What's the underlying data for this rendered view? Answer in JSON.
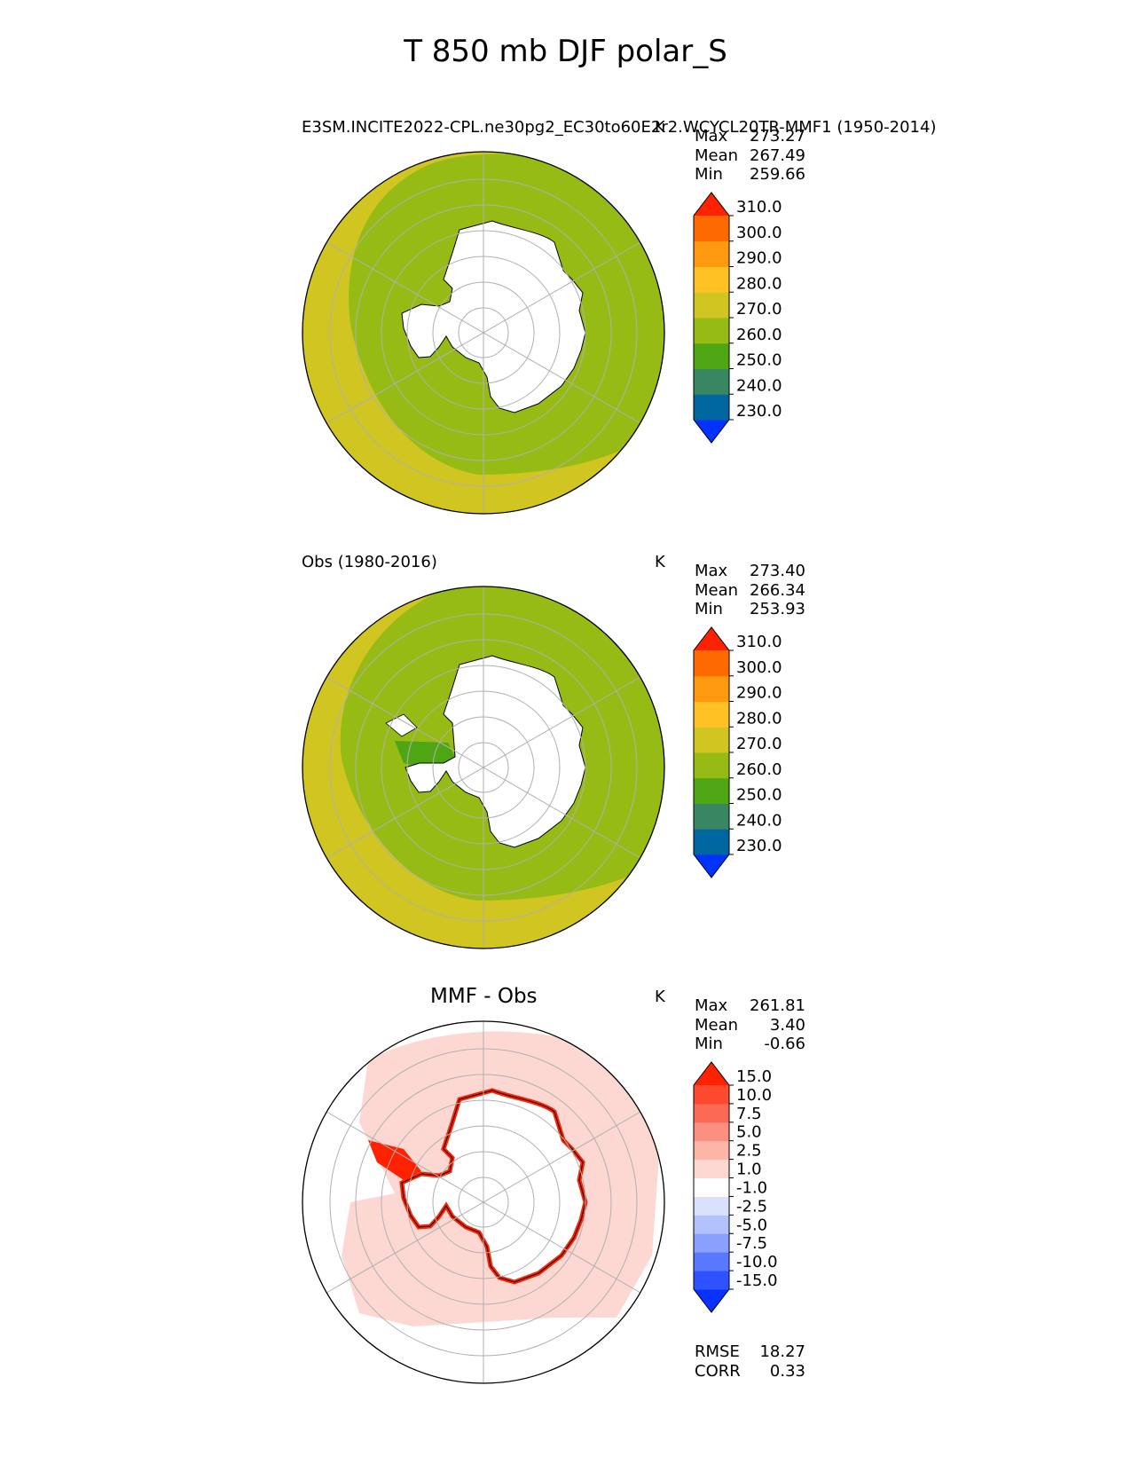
{
  "figure": {
    "title": "T 850 mb DJF polar_S"
  },
  "colors": {
    "land": "#ffffff",
    "coast": "#000000",
    "grid": "#b0b0b0",
    "abs_270_280": "#d0c521",
    "abs_260_270": "#96bb14",
    "abs_250_260": "#4ea614",
    "diff_1_2p5": "#fdd8d3",
    "diff_gt_15": "#ff2200"
  },
  "panels": [
    {
      "id": "model",
      "title_left": "E3SM.INCITE2022-CPL.ne30pg2_EC30to60E2r2.WCYCL20TR-MMF1 (1950-2014)",
      "title_center": "",
      "units": "K",
      "stats": [
        {
          "label": "Max",
          "value": "273.27"
        },
        {
          "label": "Mean",
          "value": "267.49"
        },
        {
          "label": "Min",
          "value": "259.66"
        }
      ],
      "colorbar": "abs"
    },
    {
      "id": "obs",
      "title_left": "Obs (1980-2016)",
      "title_center": "",
      "units": "K",
      "stats": [
        {
          "label": "Max",
          "value": "273.40"
        },
        {
          "label": "Mean",
          "value": "266.34"
        },
        {
          "label": "Min",
          "value": "253.93"
        }
      ],
      "colorbar": "abs"
    },
    {
      "id": "diff",
      "title_left": "",
      "title_center": "MMF - Obs",
      "units": "K",
      "stats": [
        {
          "label": "Max",
          "value": "261.81"
        },
        {
          "label": "Mean",
          "value": "3.40"
        },
        {
          "label": "Min",
          "value": "-0.66"
        }
      ],
      "extra_stats": [
        {
          "label": "RMSE",
          "value": "18.27"
        },
        {
          "label": "CORR",
          "value": "0.33"
        }
      ],
      "colorbar": "diff"
    }
  ],
  "colorbars": {
    "abs": {
      "colors": [
        "#0033ff",
        "#0066a0",
        "#398762",
        "#4ea614",
        "#96bb14",
        "#d0c521",
        "#ffc124",
        "#ff9a10",
        "#ff6a00",
        "#ff2200"
      ],
      "ticks": [
        "230.0",
        "240.0",
        "250.0",
        "260.0",
        "270.0",
        "280.0",
        "290.0",
        "300.0",
        "310.0"
      ]
    },
    "diff": {
      "colors": [
        "#0a32ff",
        "#2e52ff",
        "#5a78ff",
        "#8aa0ff",
        "#b3c2ff",
        "#dae1ff",
        "#ffffff",
        "#fdd8d3",
        "#fdb5a8",
        "#fc9080",
        "#fc6a55",
        "#fd4a2f",
        "#ff2200"
      ],
      "ticks": [
        "-15.0",
        "-10.0",
        "-7.5",
        "-5.0",
        "-2.5",
        "-1.0",
        "1.0",
        "2.5",
        "5.0",
        "7.5",
        "10.0",
        "15.0"
      ]
    }
  },
  "chart_data": [
    {
      "type": "heatmap",
      "projection": "south polar stereographic",
      "variable": "T 850 mb",
      "season": "DJF",
      "region": "polar_S",
      "panel": "model",
      "units": "K",
      "stats": {
        "max": 273.27,
        "mean": 267.49,
        "min": 259.66
      },
      "dominant_bins": [
        "260.0-270.0",
        "270.0-280.0"
      ],
      "colorbar_ticks": [
        230,
        240,
        250,
        260,
        270,
        280,
        290,
        300,
        310
      ]
    },
    {
      "type": "heatmap",
      "projection": "south polar stereographic",
      "panel": "obs",
      "units": "K",
      "stats": {
        "max": 273.4,
        "mean": 266.34,
        "min": 253.93
      },
      "dominant_bins": [
        "250.0-260.0",
        "260.0-270.0",
        "270.0-280.0"
      ],
      "colorbar_ticks": [
        230,
        240,
        250,
        260,
        270,
        280,
        290,
        300,
        310
      ]
    },
    {
      "type": "heatmap",
      "projection": "south polar stereographic",
      "panel": "diff",
      "units": "K",
      "stats": {
        "max": 261.81,
        "mean": 3.4,
        "min": -0.66,
        "rmse": 18.27,
        "corr": 0.33
      },
      "dominant_bins": [
        "-1.0-1.0",
        "1.0-2.5",
        ">15.0"
      ],
      "colorbar_ticks": [
        -15,
        -10,
        -7.5,
        -5,
        -2.5,
        -1,
        1,
        2.5,
        5,
        7.5,
        10,
        15
      ]
    }
  ]
}
